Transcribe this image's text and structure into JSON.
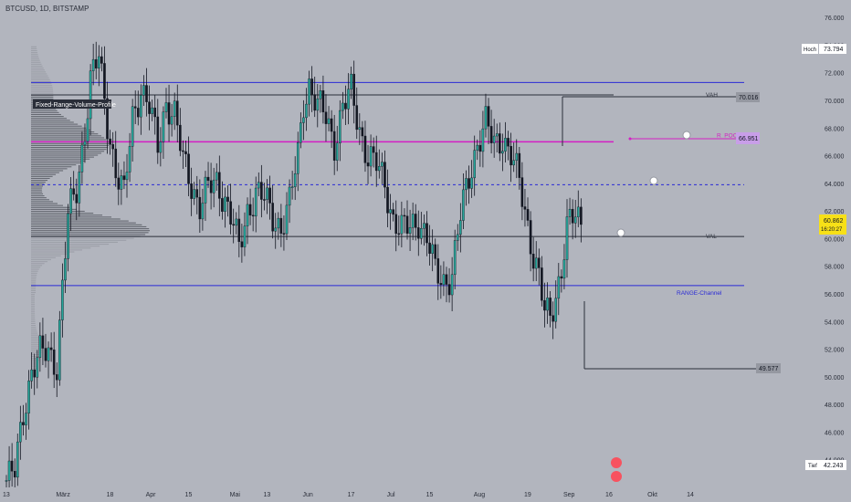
{
  "header": {
    "symbol": "BTCUSD, 1D, BITSTAMP"
  },
  "chart_data": {
    "type": "candlestick",
    "ylim": [
      42000,
      77000
    ],
    "y_ticks": [
      44000,
      46000,
      48000,
      50000,
      52000,
      54000,
      56000,
      58000,
      60000,
      62000,
      64000,
      66000,
      68000,
      70000,
      72000,
      74000,
      76000
    ],
    "y_tick_labels": [
      "44.000",
      "46.000",
      "48.000",
      "50.000",
      "52.000",
      "54.000",
      "56.000",
      "58.000",
      "60.000",
      "62.000",
      "64.000",
      "66.000",
      "68.000",
      "70.000",
      "72.000",
      "74.000",
      "76.000"
    ],
    "x_ticks": [
      {
        "label": "13",
        "day": 0
      },
      {
        "label": "März",
        "day": 19
      },
      {
        "label": "18",
        "day": 37
      },
      {
        "label": "Apr",
        "day": 51
      },
      {
        "label": "15",
        "day": 65
      },
      {
        "label": "Mai",
        "day": 81
      },
      {
        "label": "13",
        "day": 93
      },
      {
        "label": "Jun",
        "day": 107
      },
      {
        "label": "17",
        "day": 123
      },
      {
        "label": "Jul",
        "day": 137
      },
      {
        "label": "15",
        "day": 151
      },
      {
        "label": "Aug",
        "day": 168
      },
      {
        "label": "19",
        "day": 186
      },
      {
        "label": "Sep",
        "day": 200
      },
      {
        "label": "16",
        "day": 215
      },
      {
        "label": "Okt",
        "day": 230
      },
      {
        "label": "14",
        "day": 244
      }
    ],
    "levels": [
      {
        "name": "range-top",
        "value": 71300,
        "color": "#2a2ad6",
        "label": ""
      },
      {
        "name": "vah",
        "value": 70400,
        "color": "#2a2e39",
        "label": "VAH"
      },
      {
        "name": "r-poc",
        "value": 67000,
        "color": "#d41ec4",
        "label": "R_POC"
      },
      {
        "name": "mid",
        "value": 63900,
        "color": "#2a2ad6",
        "label": ""
      },
      {
        "name": "val",
        "value": 60150,
        "color": "#2a2e39",
        "label": "VAL"
      },
      {
        "name": "range-channel",
        "value": 56600,
        "color": "#2a2ad6",
        "label": "RANGE-Channel"
      }
    ],
    "badges": {
      "high_label": "Hoch",
      "high_value": "73.794",
      "low_label": "Tief",
      "low_value": "42.243",
      "price": "60.862",
      "countdown": "16:20:27",
      "vah_price": "70.016",
      "poc_price": "66.951",
      "low_marker": "49.577"
    },
    "profile_label": "Fixed-Range-Volume-Profile",
    "ohlc_keypoints": [
      [
        0,
        42500
      ],
      [
        3,
        43000
      ],
      [
        6,
        47500
      ],
      [
        9,
        50500
      ],
      [
        12,
        51500
      ],
      [
        15,
        51800
      ],
      [
        18,
        51000
      ],
      [
        20,
        56500
      ],
      [
        22,
        61500
      ],
      [
        25,
        63500
      ],
      [
        28,
        68000
      ],
      [
        30,
        71500
      ],
      [
        33,
        73000
      ],
      [
        36,
        68500
      ],
      [
        39,
        65000
      ],
      [
        42,
        63000
      ],
      [
        45,
        68800
      ],
      [
        48,
        71000
      ],
      [
        51,
        69500
      ],
      [
        54,
        66500
      ],
      [
        57,
        70000
      ],
      [
        60,
        69000
      ],
      [
        63,
        65500
      ],
      [
        66,
        64000
      ],
      [
        69,
        62500
      ],
      [
        72,
        63500
      ],
      [
        75,
        64000
      ],
      [
        78,
        63000
      ],
      [
        81,
        61000
      ],
      [
        83,
        59000
      ],
      [
        86,
        62000
      ],
      [
        89,
        63500
      ],
      [
        92,
        62800
      ],
      [
        95,
        61500
      ],
      [
        98,
        61000
      ],
      [
        101,
        62500
      ],
      [
        104,
        66000
      ],
      [
        106,
        70000
      ],
      [
        108,
        71200
      ],
      [
        111,
        69500
      ],
      [
        114,
        68800
      ],
      [
        117,
        67000
      ],
      [
        120,
        69500
      ],
      [
        123,
        70500
      ],
      [
        126,
        68000
      ],
      [
        129,
        66000
      ],
      [
        132,
        65200
      ],
      [
        135,
        64000
      ],
      [
        138,
        61500
      ],
      [
        141,
        60500
      ],
      [
        144,
        60800
      ],
      [
        147,
        61500
      ],
      [
        150,
        60000
      ],
      [
        153,
        57500
      ],
      [
        156,
        57000
      ],
      [
        159,
        57500
      ],
      [
        162,
        61500
      ],
      [
        165,
        64500
      ],
      [
        168,
        67000
      ],
      [
        171,
        68200
      ],
      [
        174,
        66800
      ],
      [
        177,
        67500
      ],
      [
        180,
        66000
      ],
      [
        183,
        64000
      ],
      [
        186,
        61000
      ],
      [
        188,
        59000
      ],
      [
        190,
        57200
      ],
      [
        192,
        54500
      ],
      [
        194,
        54200
      ],
      [
        196,
        56000
      ],
      [
        198,
        58000
      ],
      [
        200,
        60800
      ],
      [
        203,
        61500
      ],
      [
        206,
        60800
      ]
    ]
  }
}
